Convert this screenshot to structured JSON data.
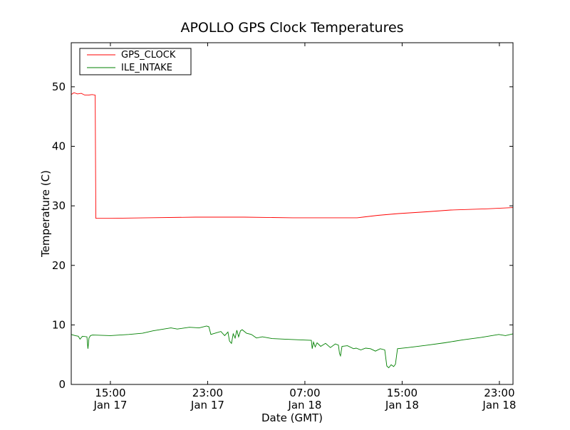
{
  "chart_data": {
    "type": "line",
    "title": "APOLLO GPS Clock Temperatures",
    "xlabel": "Date (GMT)",
    "ylabel": "Temperature (C)",
    "x_units": "hours since Jan 17 00:00 GMT",
    "xlim": [
      11.78,
      48.12
    ],
    "ylim": [
      0,
      57.4
    ],
    "grid": false,
    "legend_position": "top-left",
    "yticks": [
      0,
      10,
      20,
      30,
      40,
      50
    ],
    "xticks": [
      {
        "x": 15,
        "label": "15:00",
        "sub": "Jan 17"
      },
      {
        "x": 23,
        "label": "23:00",
        "sub": "Jan 17"
      },
      {
        "x": 31,
        "label": "07:00",
        "sub": "Jan 18"
      },
      {
        "x": 39,
        "label": "15:00",
        "sub": "Jan 18"
      },
      {
        "x": 47,
        "label": "23:00",
        "sub": "Jan 18"
      }
    ],
    "series": [
      {
        "name": "GPS_CLOCK",
        "color": "#ff0000",
        "points": [
          [
            11.78,
            48.7
          ],
          [
            12.0,
            49.0
          ],
          [
            12.3,
            48.8
          ],
          [
            12.6,
            48.9
          ],
          [
            12.9,
            48.6
          ],
          [
            13.2,
            48.6
          ],
          [
            13.5,
            48.7
          ],
          [
            13.75,
            48.6
          ],
          [
            13.8,
            27.9
          ],
          [
            15,
            27.9
          ],
          [
            18,
            28.0
          ],
          [
            22,
            28.1
          ],
          [
            26,
            28.1
          ],
          [
            30,
            28.0
          ],
          [
            35.3,
            28.0
          ],
          [
            37,
            28.4
          ],
          [
            38.7,
            28.7
          ],
          [
            41,
            29.0
          ],
          [
            43,
            29.3
          ],
          [
            46,
            29.5
          ],
          [
            48.12,
            29.7
          ]
        ]
      },
      {
        "name": "ILE_INTAKE",
        "color": "#008000",
        "points": [
          [
            11.78,
            8.4
          ],
          [
            12.1,
            8.2
          ],
          [
            12.36,
            8.1
          ],
          [
            12.5,
            7.6
          ],
          [
            12.7,
            8.1
          ],
          [
            13.07,
            8.0
          ],
          [
            13.15,
            6.0
          ],
          [
            13.24,
            7.8
          ],
          [
            13.36,
            8.2
          ],
          [
            13.53,
            8.3
          ],
          [
            15,
            8.2
          ],
          [
            16.5,
            8.4
          ],
          [
            17.64,
            8.6
          ],
          [
            18.5,
            9.0
          ],
          [
            19.98,
            9.5
          ],
          [
            20.5,
            9.3
          ],
          [
            21.5,
            9.6
          ],
          [
            22.3,
            9.5
          ],
          [
            22.91,
            9.8
          ],
          [
            23.1,
            9.7
          ],
          [
            23.27,
            8.4
          ],
          [
            23.6,
            8.6
          ],
          [
            24.09,
            8.9
          ],
          [
            24.4,
            8.2
          ],
          [
            24.67,
            8.8
          ],
          [
            24.8,
            7.3
          ],
          [
            24.96,
            6.9
          ],
          [
            25.1,
            8.5
          ],
          [
            25.26,
            7.8
          ],
          [
            25.4,
            9.1
          ],
          [
            25.55,
            8.0
          ],
          [
            25.7,
            9.0
          ],
          [
            25.84,
            9.2
          ],
          [
            26.2,
            8.6
          ],
          [
            26.6,
            8.4
          ],
          [
            27.02,
            7.8
          ],
          [
            27.5,
            8.0
          ],
          [
            28.3,
            7.7
          ],
          [
            29.36,
            7.6
          ],
          [
            30.5,
            7.5
          ],
          [
            31.53,
            7.4
          ],
          [
            31.6,
            6.0
          ],
          [
            31.71,
            7.1
          ],
          [
            31.85,
            6.3
          ],
          [
            32.0,
            7.0
          ],
          [
            32.3,
            6.4
          ],
          [
            32.7,
            6.9
          ],
          [
            33.1,
            6.2
          ],
          [
            33.5,
            6.8
          ],
          [
            33.76,
            6.6
          ],
          [
            33.85,
            5.2
          ],
          [
            33.93,
            4.8
          ],
          [
            34.05,
            6.4
          ],
          [
            34.5,
            6.5
          ],
          [
            35.0,
            6.0
          ],
          [
            35.22,
            6.1
          ],
          [
            35.6,
            5.8
          ],
          [
            36.0,
            6.1
          ],
          [
            36.39,
            6.0
          ],
          [
            36.8,
            5.6
          ],
          [
            37.2,
            6.0
          ],
          [
            37.57,
            5.8
          ],
          [
            37.74,
            3.1
          ],
          [
            37.9,
            2.8
          ],
          [
            38.1,
            3.3
          ],
          [
            38.3,
            3.0
          ],
          [
            38.45,
            3.4
          ],
          [
            38.62,
            6.0
          ],
          [
            39.5,
            6.2
          ],
          [
            41.08,
            6.6
          ],
          [
            42.5,
            7.0
          ],
          [
            44.02,
            7.5
          ],
          [
            45.5,
            7.9
          ],
          [
            46.95,
            8.4
          ],
          [
            47.5,
            8.2
          ],
          [
            48.12,
            8.5
          ]
        ]
      }
    ]
  }
}
